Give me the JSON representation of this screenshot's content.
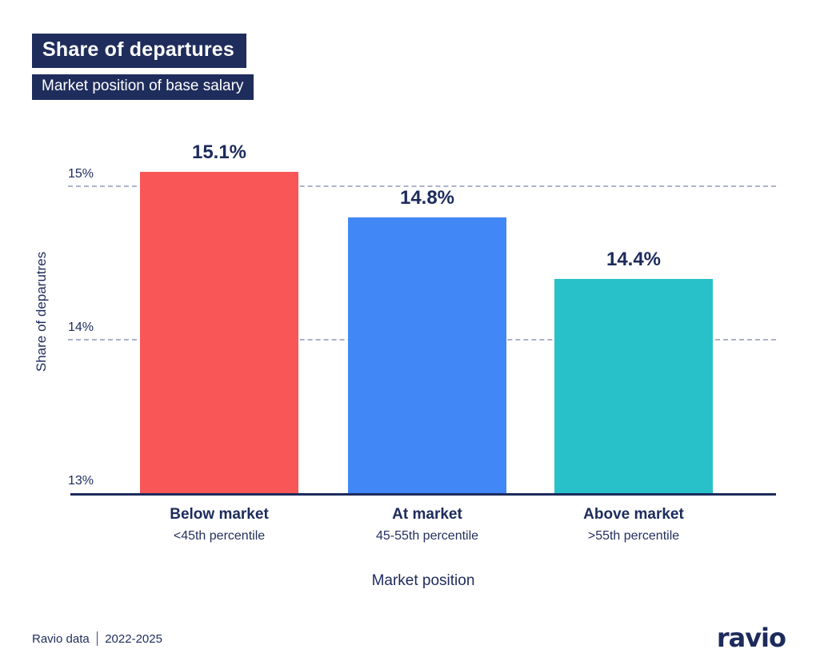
{
  "header": {
    "title": "Share of departures",
    "subtitle": "Market position of base salary"
  },
  "chart_data": {
    "type": "bar",
    "title": "Share of departures",
    "subtitle": "Market position of base salary",
    "categories": [
      "Below market",
      "At market",
      "Above market"
    ],
    "category_sublabels": [
      "<45th percentile",
      "45-55th percentile",
      ">55th percentile"
    ],
    "values": [
      15.1,
      14.8,
      14.4
    ],
    "value_labels": [
      "15.1%",
      "14.8%",
      "14.4%"
    ],
    "bar_colors": [
      "#F95658",
      "#4187F5",
      "#29C1C9"
    ],
    "xlabel": "Market position",
    "ylabel": "Share of deparutres",
    "y_ticks": [
      "15%",
      "14%",
      "13%"
    ],
    "y_tick_values": [
      15,
      14,
      13
    ],
    "ylim": [
      13,
      15.4375
    ],
    "gridlines": [
      15,
      14
    ],
    "grid_style": "dashed",
    "legend": "none",
    "colors": {
      "navy": "#1D2B5C",
      "grid": "#ACB2CA",
      "background": "#FFFFFF"
    }
  },
  "footer": {
    "source": "Ravio data",
    "period": "2022-2025",
    "logo": "ravio"
  }
}
